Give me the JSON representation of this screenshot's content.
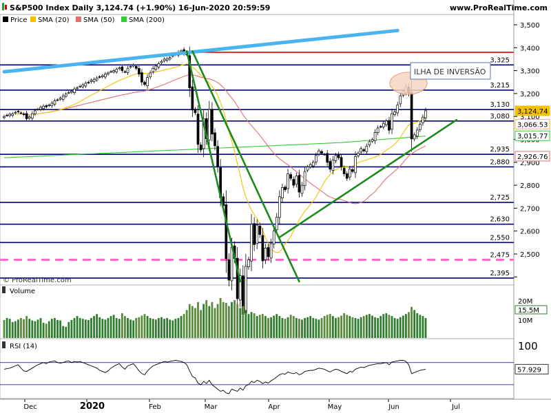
{
  "header": {
    "title": "S&P500 Index Daily 3,124.74 (+1.90%) 16-Jun-2020 20:59:59",
    "site": "www.ProRealTime.com"
  },
  "legend": [
    {
      "name": "Price",
      "color": "#000000"
    },
    {
      "name": "SMA (20)",
      "color": "#f2c200"
    },
    {
      "name": "SMA (50)",
      "color": "#e07070"
    },
    {
      "name": "SMA (200)",
      "color": "#33cc33"
    }
  ],
  "watermark": "© ProRealTime.com",
  "annotation": "ILHA DE INVERSÃO",
  "chart_data": {
    "type": "candlestick",
    "title": "S&P500 Index Daily 3,124.74 (+1.90%) 16-Jun-2020 20:59:59",
    "price_axis_ticks": [
      2400,
      2500,
      2600,
      2700,
      2800,
      2900,
      3000,
      3100,
      3200,
      3300,
      3400,
      3500
    ],
    "price_axis_tick_labels": [
      "",
      "2,500",
      "2,600",
      "2,700",
      "2,800",
      "2,900",
      "3,000",
      "3,100",
      "3,200",
      "3,300",
      "3,400",
      "3,500"
    ],
    "ylim": [
      2380,
      3550
    ],
    "x_labels": [
      "Dec",
      "2020",
      "Feb",
      "Mar",
      "Apr",
      "May",
      "Jun",
      "Jul"
    ],
    "horizontal_levels": [
      {
        "value": 3325,
        "label": "3,325",
        "color": "#000080"
      },
      {
        "value": 3215,
        "label": "3,215",
        "color": "#000080"
      },
      {
        "value": 3130,
        "label": "3,130",
        "color": "#000080"
      },
      {
        "value": 3080,
        "label": "3,080",
        "color": "#000080"
      },
      {
        "value": 2935,
        "label": "2,935",
        "color": "#000080"
      },
      {
        "value": 2880,
        "label": "2,880",
        "color": "#000080"
      },
      {
        "value": 2725,
        "label": "2,725",
        "color": "#000080"
      },
      {
        "value": 2630,
        "label": "2,630",
        "color": "#000080"
      },
      {
        "value": 2550,
        "label": "2,550",
        "color": "#000080"
      },
      {
        "value": 2475,
        "label": "2,475",
        "color": "#ff66cc",
        "dashed": true
      },
      {
        "value": 2395,
        "label": "2,395",
        "color": "#000080"
      },
      {
        "value": 3380,
        "label": "",
        "color": "#dd0000"
      }
    ],
    "value_badges": [
      {
        "value": 3124.74,
        "label": "3,124.74",
        "color": "#f2c200"
      },
      {
        "value": 3066.53,
        "label": "3,066.53",
        "color": "#f2c200"
      },
      {
        "value": 3015.77,
        "label": "3,015.77",
        "color": "#33cc33"
      },
      {
        "value": 2926.76,
        "label": "2,926.76",
        "color": "#e07070"
      }
    ],
    "trendlines": [
      {
        "name": "upper-blue",
        "color": "#4ab4f0",
        "from": {
          "bar": 0,
          "price": 3295
        },
        "to": {
          "bar": 140,
          "price": 3475
        }
      },
      {
        "name": "steep-down",
        "color": "#1a8a1a",
        "from": {
          "bar": 65,
          "price": 3385
        },
        "to": {
          "bar": 84,
          "price": 2380
        }
      },
      {
        "name": "second-down",
        "color": "#1a8a1a",
        "from": {
          "bar": 67,
          "price": 3385
        },
        "to": {
          "bar": 105,
          "price": 2380
        }
      },
      {
        "name": "up-support",
        "color": "#1a8a1a",
        "from": {
          "bar": 98,
          "price": 2573
        },
        "to": {
          "bar": 161,
          "price": 3085
        }
      }
    ],
    "closes": [
      3100,
      3105,
      3110,
      3112,
      3118,
      3120,
      3115,
      3108,
      3090,
      3098,
      3112,
      3125,
      3132,
      3140,
      3145,
      3142,
      3150,
      3158,
      3168,
      3172,
      3180,
      3190,
      3198,
      3205,
      3210,
      3220,
      3225,
      3232,
      3238,
      3245,
      3248,
      3258,
      3262,
      3268,
      3272,
      3278,
      3285,
      3290,
      3296,
      3300,
      3305,
      3312,
      3300,
      3295,
      3310,
      3318,
      3325,
      3310,
      3285,
      3250,
      3240,
      3270,
      3290,
      3310,
      3320,
      3330,
      3340,
      3350,
      3352,
      3357,
      3370,
      3373,
      3380,
      3386,
      3375,
      3370,
      3225,
      3128,
      3116,
      2978,
      2954,
      3090,
      3003,
      3130,
      3023,
      2972,
      2882,
      2746,
      2711,
      2480,
      2386,
      2530,
      2480,
      2305,
      2405,
      2237,
      2446,
      2475,
      2630,
      2541,
      2626,
      2585,
      2470,
      2526,
      2488,
      2545,
      2600,
      2660,
      2750,
      2790,
      2780,
      2850,
      2830,
      2800,
      2840,
      2770,
      2800,
      2860,
      2880,
      2890,
      2900,
      2930,
      2950,
      2940,
      2935,
      2900,
      2870,
      2910,
      2930,
      2920,
      2880,
      2850,
      2830,
      2870,
      2860,
      2925,
      2940,
      2960,
      2950,
      2970,
      2990,
      3000,
      3030,
      3050,
      3055,
      3070,
      3080,
      3040,
      3112,
      3120,
      3150,
      3190,
      3210,
      3230,
      3200,
      3002,
      3020,
      3041,
      3066,
      3097,
      3125
    ],
    "volume": {
      "label": "Volume",
      "axis_labels": [
        "20M",
        "15.5M",
        "10M"
      ],
      "last_label": "15.5M",
      "bars": [
        0.45,
        0.5,
        0.48,
        0.4,
        0.42,
        0.46,
        0.5,
        0.47,
        0.55,
        0.48,
        0.44,
        0.42,
        0.46,
        0.5,
        0.38,
        0.36,
        0.42,
        0.48,
        0.5,
        0.45,
        0.44,
        0.3,
        0.28,
        0.4,
        0.45,
        0.5,
        0.55,
        0.5,
        0.48,
        0.46,
        0.45,
        0.5,
        0.55,
        0.6,
        0.52,
        0.48,
        0.46,
        0.5,
        0.55,
        0.58,
        0.5,
        0.48,
        0.62,
        0.55,
        0.5,
        0.46,
        0.44,
        0.5,
        0.52,
        0.56,
        0.6,
        0.55,
        0.5,
        0.48,
        0.46,
        0.5,
        0.52,
        0.48,
        0.5,
        0.46,
        0.44,
        0.48,
        0.5,
        0.55,
        0.6,
        0.7,
        0.85,
        0.8,
        0.75,
        0.9,
        0.7,
        0.85,
        0.95,
        0.8,
        0.9,
        0.75,
        0.85,
        1.0,
        0.9,
        0.88,
        0.8,
        0.9,
        0.95,
        0.85,
        0.75,
        0.8,
        0.7,
        0.6,
        0.65,
        0.62,
        0.55,
        0.58,
        0.6,
        0.55,
        0.5,
        0.52,
        0.56,
        0.6,
        0.55,
        0.5,
        0.48,
        0.52,
        0.58,
        0.55,
        0.5,
        0.48,
        0.46,
        0.5,
        0.52,
        0.55,
        0.5,
        0.48,
        0.46,
        0.5,
        0.55,
        0.58,
        0.6,
        0.55,
        0.5,
        0.52,
        0.56,
        0.62,
        0.58,
        0.55,
        0.52,
        0.5,
        0.48,
        0.52,
        0.55,
        0.58,
        0.6,
        0.56,
        0.52,
        0.5,
        0.55,
        0.6,
        0.62,
        0.58,
        0.55,
        0.5,
        0.48,
        0.52,
        0.56,
        0.6,
        0.65,
        0.78,
        0.7,
        0.62,
        0.58,
        0.55,
        0.5
      ]
    },
    "rsi": {
      "label": "RSI (14)",
      "axis_top": "100",
      "last_value": "57.929",
      "levels": [
        70,
        30
      ],
      "values": [
        58,
        59,
        60,
        62,
        64,
        66,
        60,
        55,
        54,
        57,
        60,
        63,
        66,
        68,
        70,
        68,
        71,
        72,
        73,
        70,
        69,
        70,
        72,
        73,
        70,
        72,
        71,
        72,
        70,
        68,
        66,
        64,
        62,
        60,
        56,
        54,
        52,
        55,
        60,
        63,
        66,
        68,
        62,
        58,
        64,
        66,
        68,
        62,
        55,
        50,
        48,
        55,
        60,
        64,
        66,
        68,
        70,
        72,
        71,
        72,
        73,
        74,
        73,
        72,
        70,
        66,
        55,
        45,
        42,
        33,
        30,
        36,
        32,
        38,
        30,
        26,
        22,
        18,
        20,
        15,
        14,
        22,
        20,
        18,
        24,
        20,
        28,
        30,
        36,
        34,
        38,
        36,
        32,
        35,
        33,
        37,
        40,
        44,
        48,
        50,
        49,
        53,
        51,
        50,
        52,
        48,
        50,
        54,
        55,
        56,
        56,
        58,
        60,
        59,
        58,
        55,
        53,
        56,
        58,
        57,
        54,
        52,
        50,
        54,
        53,
        58,
        60,
        62,
        61,
        63,
        65,
        66,
        67,
        68,
        68,
        69,
        70,
        66,
        71,
        72,
        73,
        74,
        74,
        72,
        66,
        50,
        52,
        54,
        56,
        57,
        58
      ]
    }
  }
}
